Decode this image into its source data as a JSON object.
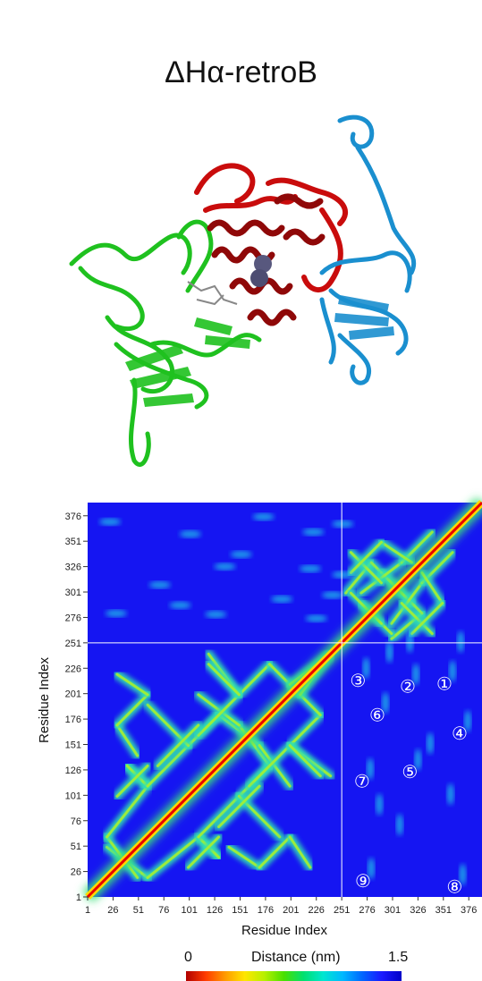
{
  "title": "ΔHα-retroB",
  "structure": {
    "description_colors": {
      "green_domain": "#1fc11f",
      "red_domain": "#c90c0c",
      "dark_red_domain": "#8f0808",
      "blue_domain": "#1a8fcf",
      "metal_spheres": "#58587e"
    }
  },
  "chart_data": {
    "type": "heatmap",
    "xlabel": "Residue Index",
    "ylabel": "Residue Index",
    "x_ticks": [
      "1",
      "26",
      "51",
      "76",
      "101",
      "126",
      "151",
      "176",
      "201",
      "226",
      "251",
      "276",
      "301",
      "326",
      "351",
      "376"
    ],
    "y_ticks": [
      "1",
      "26",
      "51",
      "76",
      "101",
      "126",
      "151",
      "176",
      "201",
      "226",
      "251",
      "276",
      "301",
      "326",
      "351",
      "376"
    ],
    "range": [
      1,
      389
    ],
    "domain_boundary": 251,
    "colorbar": {
      "label": "Distance (nm)",
      "min": "0",
      "max": "1.5"
    },
    "annotations": [
      {
        "label": "①",
        "x": 352,
        "y": 211
      },
      {
        "label": "②",
        "x": 316,
        "y": 208
      },
      {
        "label": "③",
        "x": 267,
        "y": 214
      },
      {
        "label": "④",
        "x": 367,
        "y": 162
      },
      {
        "label": "⑤",
        "x": 318,
        "y": 124
      },
      {
        "label": "⑥",
        "x": 286,
        "y": 180
      },
      {
        "label": "⑦",
        "x": 271,
        "y": 115
      },
      {
        "label": "⑧",
        "x": 362,
        "y": 11
      },
      {
        "label": "⑨",
        "x": 272,
        "y": 17
      }
    ]
  }
}
